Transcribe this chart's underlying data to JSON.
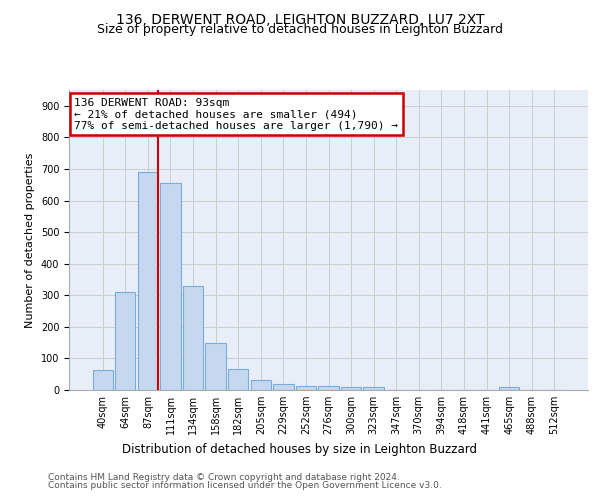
{
  "title": "136, DERWENT ROAD, LEIGHTON BUZZARD, LU7 2XT",
  "subtitle": "Size of property relative to detached houses in Leighton Buzzard",
  "xlabel": "Distribution of detached houses by size in Leighton Buzzard",
  "ylabel": "Number of detached properties",
  "bar_labels": [
    "40sqm",
    "64sqm",
    "87sqm",
    "111sqm",
    "134sqm",
    "158sqm",
    "182sqm",
    "205sqm",
    "229sqm",
    "252sqm",
    "276sqm",
    "300sqm",
    "323sqm",
    "347sqm",
    "370sqm",
    "394sqm",
    "418sqm",
    "441sqm",
    "465sqm",
    "488sqm",
    "512sqm"
  ],
  "bar_values": [
    62,
    310,
    690,
    655,
    330,
    150,
    65,
    32,
    20,
    12,
    12,
    10,
    10,
    0,
    0,
    0,
    0,
    0,
    8,
    0,
    0
  ],
  "bar_color": "#c5d8f0",
  "bar_edgecolor": "#7aabdb",
  "bar_linewidth": 0.8,
  "red_line_label": "136 DERWENT ROAD: 93sqm",
  "red_line_note1": "← 21% of detached houses are smaller (494)",
  "red_line_note2": "77% of semi-detached houses are larger (1,790) →",
  "annotation_box_color": "#cc0000",
  "ylim": [
    0,
    950
  ],
  "yticks": [
    0,
    100,
    200,
    300,
    400,
    500,
    600,
    700,
    800,
    900
  ],
  "grid_color": "#cccccc",
  "bg_color": "#e8eef8",
  "footnote1": "Contains HM Land Registry data © Crown copyright and database right 2024.",
  "footnote2": "Contains public sector information licensed under the Open Government Licence v3.0.",
  "title_fontsize": 10,
  "subtitle_fontsize": 9,
  "xlabel_fontsize": 8.5,
  "ylabel_fontsize": 8,
  "tick_fontsize": 7,
  "footnote_fontsize": 6.5,
  "annot_fontsize": 8
}
